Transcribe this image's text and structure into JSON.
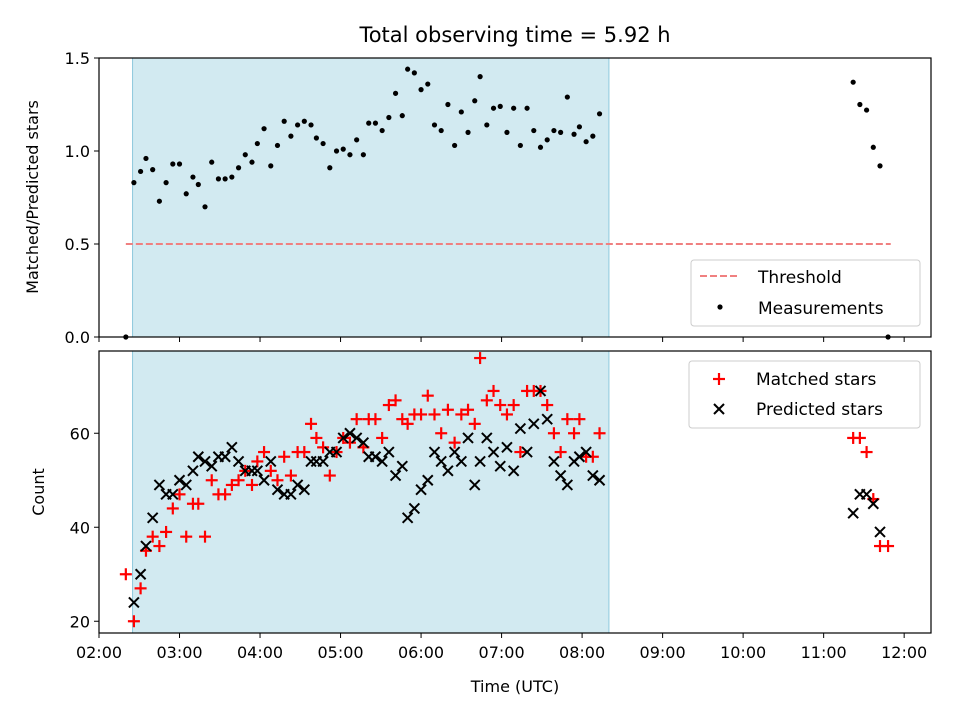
{
  "title": "Total observing time = 5.92 h",
  "xlabel": "Time (UTC)",
  "xticks": [
    "02:00",
    "03:00",
    "04:00",
    "05:00",
    "06:00",
    "07:00",
    "08:00",
    "09:00",
    "10:00",
    "11:00",
    "12:00"
  ],
  "colors": {
    "threshold": "#f08080",
    "shade": "#add8e6",
    "matched": "#ff0000",
    "predicted": "#000000",
    "measure": "#000000"
  },
  "chart_data": [
    {
      "type": "scatter",
      "ylabel": "Matched/Predicted stars",
      "ylim": [
        0.0,
        1.5
      ],
      "xlim": [
        "02:00",
        "12:20"
      ],
      "yticks": [
        "0.0",
        "0.5",
        "1.0",
        "1.5"
      ],
      "observing_window": [
        "02:25",
        "08:20"
      ],
      "threshold": 0.5,
      "threshold_range": [
        "02:20",
        "11:50"
      ],
      "legend": {
        "position": "lower right",
        "entries": [
          "Threshold",
          "Measurements"
        ]
      },
      "series": [
        {
          "name": "Measurements",
          "points": [
            [
              "02:20",
              0.0
            ],
            [
              "02:26",
              0.83
            ],
            [
              "02:31",
              0.89
            ],
            [
              "02:35",
              0.96
            ],
            [
              "02:40",
              0.9
            ],
            [
              "02:45",
              0.73
            ],
            [
              "02:50",
              0.83
            ],
            [
              "02:55",
              0.93
            ],
            [
              "03:00",
              0.93
            ],
            [
              "03:05",
              0.77
            ],
            [
              "03:10",
              0.86
            ],
            [
              "03:14",
              0.82
            ],
            [
              "03:19",
              0.7
            ],
            [
              "03:24",
              0.94
            ],
            [
              "03:29",
              0.85
            ],
            [
              "03:34",
              0.85
            ],
            [
              "03:39",
              0.86
            ],
            [
              "03:44",
              0.91
            ],
            [
              "03:49",
              0.98
            ],
            [
              "03:54",
              0.94
            ],
            [
              "03:58",
              1.04
            ],
            [
              "04:03",
              1.12
            ],
            [
              "04:08",
              0.92
            ],
            [
              "04:13",
              1.03
            ],
            [
              "04:18",
              1.16
            ],
            [
              "04:23",
              1.08
            ],
            [
              "04:28",
              1.14
            ],
            [
              "04:33",
              1.16
            ],
            [
              "04:38",
              1.14
            ],
            [
              "04:42",
              1.07
            ],
            [
              "04:47",
              1.04
            ],
            [
              "04:52",
              0.91
            ],
            [
              "04:57",
              1.0
            ],
            [
              "05:02",
              1.01
            ],
            [
              "05:07",
              0.98
            ],
            [
              "05:12",
              1.06
            ],
            [
              "05:17",
              0.98
            ],
            [
              "05:21",
              1.15
            ],
            [
              "05:26",
              1.15
            ],
            [
              "05:31",
              1.11
            ],
            [
              "05:36",
              1.18
            ],
            [
              "05:41",
              1.31
            ],
            [
              "05:46",
              1.19
            ],
            [
              "05:50",
              1.44
            ],
            [
              "05:55",
              1.42
            ],
            [
              "06:00",
              1.33
            ],
            [
              "06:05",
              1.36
            ],
            [
              "06:10",
              1.14
            ],
            [
              "06:15",
              1.11
            ],
            [
              "06:20",
              1.25
            ],
            [
              "06:25",
              1.03
            ],
            [
              "06:30",
              1.21
            ],
            [
              "06:35",
              1.1
            ],
            [
              "06:40",
              1.27
            ],
            [
              "06:44",
              1.4
            ],
            [
              "06:49",
              1.14
            ],
            [
              "06:54",
              1.23
            ],
            [
              "06:59",
              1.24
            ],
            [
              "07:04",
              1.1
            ],
            [
              "07:09",
              1.23
            ],
            [
              "07:14",
              1.03
            ],
            [
              "07:19",
              1.23
            ],
            [
              "07:24",
              1.11
            ],
            [
              "07:29",
              1.02
            ],
            [
              "07:34",
              1.06
            ],
            [
              "07:39",
              1.11
            ],
            [
              "07:44",
              1.1
            ],
            [
              "07:49",
              1.29
            ],
            [
              "07:54",
              1.09
            ],
            [
              "07:58",
              1.13
            ],
            [
              "08:03",
              1.05
            ],
            [
              "08:08",
              1.08
            ],
            [
              "08:13",
              1.2
            ],
            [
              "11:22",
              1.37
            ],
            [
              "11:27",
              1.25
            ],
            [
              "11:32",
              1.22
            ],
            [
              "11:37",
              1.02
            ],
            [
              "11:42",
              0.92
            ],
            [
              "11:48",
              0.0
            ]
          ]
        }
      ]
    },
    {
      "type": "scatter",
      "ylabel": "Count",
      "ylim": [
        17.5,
        77.5
      ],
      "xlim": [
        "02:00",
        "12:20"
      ],
      "yticks": [
        "20",
        "40",
        "60"
      ],
      "observing_window": [
        "02:25",
        "08:20"
      ],
      "legend": {
        "position": "upper right",
        "entries": [
          "Matched stars",
          "Predicted stars"
        ]
      },
      "series": [
        {
          "name": "Matched stars",
          "points": [
            [
              "02:20",
              30
            ],
            [
              "02:26",
              20
            ],
            [
              "02:31",
              27
            ],
            [
              "02:35",
              35
            ],
            [
              "02:40",
              38
            ],
            [
              "02:45",
              36
            ],
            [
              "02:50",
              39
            ],
            [
              "02:55",
              44
            ],
            [
              "03:00",
              47
            ],
            [
              "03:05",
              38
            ],
            [
              "03:10",
              45
            ],
            [
              "03:14",
              45
            ],
            [
              "03:19",
              38
            ],
            [
              "03:24",
              50
            ],
            [
              "03:29",
              47
            ],
            [
              "03:34",
              47
            ],
            [
              "03:39",
              49
            ],
            [
              "03:44",
              50
            ],
            [
              "03:49",
              52
            ],
            [
              "03:54",
              49
            ],
            [
              "03:58",
              54
            ],
            [
              "04:03",
              56
            ],
            [
              "04:08",
              52
            ],
            [
              "04:13",
              50
            ],
            [
              "04:18",
              55
            ],
            [
              "04:23",
              51
            ],
            [
              "04:28",
              56
            ],
            [
              "04:33",
              56
            ],
            [
              "04:38",
              62
            ],
            [
              "04:42",
              59
            ],
            [
              "04:47",
              57
            ],
            [
              "04:52",
              51
            ],
            [
              "04:57",
              56
            ],
            [
              "05:02",
              59
            ],
            [
              "05:07",
              58
            ],
            [
              "05:12",
              63
            ],
            [
              "05:17",
              57
            ],
            [
              "05:21",
              63
            ],
            [
              "05:26",
              63
            ],
            [
              "05:31",
              59
            ],
            [
              "05:36",
              66
            ],
            [
              "05:41",
              67
            ],
            [
              "05:46",
              63
            ],
            [
              "05:50",
              62
            ],
            [
              "05:55",
              64
            ],
            [
              "06:00",
              64
            ],
            [
              "06:05",
              68
            ],
            [
              "06:10",
              64
            ],
            [
              "06:15",
              60
            ],
            [
              "06:20",
              65
            ],
            [
              "06:25",
              58
            ],
            [
              "06:30",
              64
            ],
            [
              "06:35",
              65
            ],
            [
              "06:40",
              62
            ],
            [
              "06:44",
              76
            ],
            [
              "06:49",
              67
            ],
            [
              "06:54",
              69
            ],
            [
              "06:59",
              66
            ],
            [
              "07:04",
              64
            ],
            [
              "07:09",
              66
            ],
            [
              "07:14",
              56
            ],
            [
              "07:19",
              69
            ],
            [
              "07:24",
              69
            ],
            [
              "07:29",
              69
            ],
            [
              "07:34",
              66
            ],
            [
              "07:39",
              60
            ],
            [
              "07:44",
              56
            ],
            [
              "07:49",
              63
            ],
            [
              "07:54",
              60
            ],
            [
              "07:58",
              63
            ],
            [
              "08:03",
              55
            ],
            [
              "08:08",
              55
            ],
            [
              "08:13",
              60
            ],
            [
              "11:22",
              59
            ],
            [
              "11:27",
              59
            ],
            [
              "11:32",
              56
            ],
            [
              "11:37",
              46
            ],
            [
              "11:42",
              36
            ],
            [
              "11:48",
              36
            ]
          ]
        },
        {
          "name": "Predicted stars",
          "points": [
            [
              "02:26",
              24
            ],
            [
              "02:31",
              30
            ],
            [
              "02:35",
              36
            ],
            [
              "02:40",
              42
            ],
            [
              "02:45",
              49
            ],
            [
              "02:50",
              47
            ],
            [
              "02:55",
              47
            ],
            [
              "03:00",
              50
            ],
            [
              "03:05",
              49
            ],
            [
              "03:10",
              52
            ],
            [
              "03:14",
              55
            ],
            [
              "03:19",
              54
            ],
            [
              "03:24",
              53
            ],
            [
              "03:29",
              55
            ],
            [
              "03:34",
              55
            ],
            [
              "03:39",
              57
            ],
            [
              "03:44",
              54
            ],
            [
              "03:49",
              52
            ],
            [
              "03:54",
              52
            ],
            [
              "03:58",
              52
            ],
            [
              "04:03",
              50
            ],
            [
              "04:08",
              54
            ],
            [
              "04:13",
              48
            ],
            [
              "04:18",
              47
            ],
            [
              "04:23",
              47
            ],
            [
              "04:28",
              49
            ],
            [
              "04:33",
              48
            ],
            [
              "04:38",
              54
            ],
            [
              "04:42",
              54
            ],
            [
              "04:47",
              54
            ],
            [
              "04:52",
              56
            ],
            [
              "04:57",
              56
            ],
            [
              "05:02",
              59
            ],
            [
              "05:07",
              60
            ],
            [
              "05:12",
              59
            ],
            [
              "05:17",
              58
            ],
            [
              "05:21",
              55
            ],
            [
              "05:26",
              55
            ],
            [
              "05:31",
              54
            ],
            [
              "05:36",
              56
            ],
            [
              "05:41",
              51
            ],
            [
              "05:46",
              53
            ],
            [
              "05:50",
              42
            ],
            [
              "05:55",
              44
            ],
            [
              "06:00",
              48
            ],
            [
              "06:05",
              50
            ],
            [
              "06:10",
              56
            ],
            [
              "06:15",
              54
            ],
            [
              "06:20",
              52
            ],
            [
              "06:25",
              56
            ],
            [
              "06:30",
              54
            ],
            [
              "06:35",
              59
            ],
            [
              "06:40",
              49
            ],
            [
              "06:44",
              54
            ],
            [
              "06:49",
              59
            ],
            [
              "06:54",
              56
            ],
            [
              "06:59",
              53
            ],
            [
              "07:04",
              57
            ],
            [
              "07:09",
              52
            ],
            [
              "07:14",
              61
            ],
            [
              "07:19",
              56
            ],
            [
              "07:24",
              62
            ],
            [
              "07:29",
              69
            ],
            [
              "07:34",
              63
            ],
            [
              "07:39",
              54
            ],
            [
              "07:44",
              51
            ],
            [
              "07:49",
              49
            ],
            [
              "07:54",
              54
            ],
            [
              "07:58",
              55
            ],
            [
              "08:03",
              56
            ],
            [
              "08:08",
              51
            ],
            [
              "08:13",
              50
            ],
            [
              "11:22",
              43
            ],
            [
              "11:27",
              47
            ],
            [
              "11:32",
              47
            ],
            [
              "11:37",
              45
            ],
            [
              "11:42",
              39
            ]
          ]
        }
      ]
    }
  ]
}
